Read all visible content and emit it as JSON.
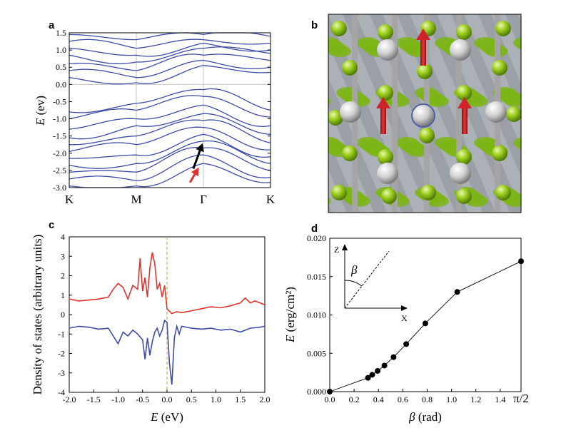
{
  "panels": {
    "a": "a",
    "b": "b",
    "c": "c",
    "d": "d"
  },
  "chart_data": [
    {
      "id": "a",
      "type": "line",
      "title": "",
      "xlabel": "",
      "ylabel_var": "E",
      "ylabel_unit": " (ev)",
      "ylim": [
        -3.0,
        1.5
      ],
      "yticks": [
        "1.5",
        "1.0",
        "0.5",
        "0.0",
        "-0.5",
        "-1.0",
        "-1.5",
        "-2.0",
        "-2.5",
        "-3.0"
      ],
      "kpoints": [
        "K",
        "M",
        "Γ",
        "K"
      ],
      "kpos": [
        0,
        1,
        2,
        3
      ],
      "series_color": "#3c4ca6",
      "arrows": [
        {
          "name": "black-arrow",
          "color": "#000000",
          "from": [
            1.85,
            -2.45
          ],
          "to": [
            1.98,
            -1.75
          ]
        },
        {
          "name": "red-arrow",
          "color": "#e0322b",
          "from": [
            1.8,
            -2.85
          ],
          "to": [
            1.92,
            -2.45
          ]
        }
      ],
      "bands": [
        {
          "name": "band-1",
          "values": [
            1.45,
            1.3,
            1.45,
            1.4
          ]
        },
        {
          "name": "band-2",
          "values": [
            1.25,
            1.05,
            1.3,
            1.2
          ]
        },
        {
          "name": "band-3",
          "values": [
            1.05,
            0.85,
            1.2,
            1.0
          ]
        },
        {
          "name": "band-4",
          "values": [
            0.85,
            0.65,
            1.05,
            0.9
          ]
        },
        {
          "name": "band-5",
          "values": [
            0.6,
            0.4,
            0.85,
            0.7
          ]
        },
        {
          "name": "band-6",
          "values": [
            0.4,
            0.2,
            0.7,
            0.5
          ]
        },
        {
          "name": "band-7",
          "values": [
            0.2,
            0.05,
            0.55,
            0.35
          ]
        },
        {
          "name": "band-8",
          "values": [
            -0.8,
            -0.55,
            -0.15,
            -0.75
          ]
        },
        {
          "name": "band-9",
          "values": [
            -1.0,
            -0.75,
            -0.35,
            -0.95
          ]
        },
        {
          "name": "band-10",
          "values": [
            -1.3,
            -1.0,
            -0.6,
            -1.2
          ]
        },
        {
          "name": "band-11",
          "values": [
            -1.55,
            -1.2,
            -0.85,
            -1.45
          ]
        },
        {
          "name": "band-12",
          "values": [
            -1.75,
            -1.5,
            -1.05,
            -1.7
          ]
        },
        {
          "name": "band-13",
          "values": [
            -1.95,
            -1.75,
            -1.25,
            -1.9
          ]
        },
        {
          "name": "band-14",
          "values": [
            -2.15,
            -2.05,
            -1.45,
            -2.1
          ]
        },
        {
          "name": "band-15",
          "values": [
            -2.35,
            -2.3,
            -1.65,
            -2.3
          ]
        },
        {
          "name": "band-16",
          "values": [
            -2.55,
            -2.55,
            -1.85,
            -2.5
          ]
        },
        {
          "name": "band-17",
          "values": [
            -2.75,
            -2.8,
            -2.05,
            -2.7
          ]
        },
        {
          "name": "band-18",
          "values": [
            -2.95,
            -2.95,
            -2.3,
            -2.85
          ]
        }
      ]
    },
    {
      "id": "c",
      "type": "line",
      "xlabel_var": "E",
      "xlabel_unit": " (eV)",
      "ylabel": "Density of states (arbitrary units)",
      "xlim": [
        -2.0,
        2.0
      ],
      "ylim": [
        -4,
        4
      ],
      "xticks": [
        "-2.0",
        "-1.5",
        "-1.0",
        "-0.5",
        "0.0",
        "0.5",
        "1.0",
        "1.5",
        "2.0"
      ],
      "yticks": [
        "4",
        "3",
        "2",
        "1",
        "0",
        "-1",
        "-2",
        "-3",
        "-4"
      ],
      "fermi_color": "#e8902a",
      "series": [
        {
          "name": "spin-up",
          "color": "#e0322b",
          "x": [
            -2.0,
            -1.8,
            -1.6,
            -1.4,
            -1.2,
            -1.1,
            -1.0,
            -0.9,
            -0.8,
            -0.7,
            -0.6,
            -0.55,
            -0.5,
            -0.45,
            -0.4,
            -0.35,
            -0.3,
            -0.25,
            -0.2,
            -0.15,
            -0.1,
            -0.05,
            0.0,
            0.1,
            0.2,
            0.3,
            0.5,
            0.7,
            0.9,
            1.1,
            1.3,
            1.5,
            1.6,
            1.7,
            1.8,
            2.0
          ],
          "y": [
            0.8,
            0.7,
            0.75,
            0.8,
            0.9,
            1.3,
            1.6,
            1.4,
            0.8,
            1.5,
            1.3,
            2.9,
            1.2,
            1.9,
            0.9,
            2.4,
            3.2,
            2.6,
            1.3,
            1.6,
            0.9,
            1.5,
            0.3,
            0.05,
            0.15,
            0.1,
            0.2,
            0.3,
            0.4,
            0.35,
            0.45,
            0.6,
            0.85,
            0.6,
            0.7,
            0.5
          ]
        },
        {
          "name": "spin-down",
          "color": "#3c4ca6",
          "x": [
            -2.0,
            -1.8,
            -1.6,
            -1.4,
            -1.2,
            -1.0,
            -0.9,
            -0.8,
            -0.7,
            -0.6,
            -0.5,
            -0.45,
            -0.4,
            -0.35,
            -0.3,
            -0.25,
            -0.2,
            -0.15,
            -0.1,
            -0.05,
            0.0,
            0.05,
            0.1,
            0.15,
            0.2,
            0.25,
            0.3,
            0.5,
            0.7,
            0.9,
            1.1,
            1.3,
            1.5,
            1.7,
            1.9,
            2.0
          ],
          "y": [
            -0.7,
            -0.6,
            -0.65,
            -0.75,
            -0.7,
            -1.5,
            -0.9,
            -1.1,
            -0.8,
            -1.0,
            -1.3,
            -2.3,
            -1.2,
            -2.1,
            -1.4,
            -0.9,
            -0.7,
            -1.1,
            -0.8,
            -0.3,
            -0.4,
            -2.5,
            -3.6,
            -1.2,
            -0.6,
            -1.0,
            -0.6,
            -0.7,
            -0.75,
            -0.7,
            -0.8,
            -0.75,
            -0.9,
            -0.7,
            -0.65,
            -0.6
          ]
        }
      ]
    },
    {
      "id": "d",
      "type": "scatter",
      "xlabel_var": "β",
      "xlabel_unit": " (rad)",
      "ylabel_var": "E",
      "ylabel_unit": " (erg/cm²)",
      "xlim": [
        0.0,
        1.5708
      ],
      "ylim": [
        0.0,
        0.02
      ],
      "xticks": [
        "0.0",
        "0.2",
        "0.4",
        "0.6",
        "0.8",
        "1.0",
        "1.2",
        "1.4",
        "π/2"
      ],
      "xtick_vals": [
        0.0,
        0.2,
        0.4,
        0.6,
        0.8,
        1.0,
        1.2,
        1.4,
        1.5708
      ],
      "yticks": [
        "0.020",
        "0.015",
        "0.010",
        "0.005",
        "0.000"
      ],
      "ytick_vals": [
        0.02,
        0.015,
        0.01,
        0.005,
        0.0
      ],
      "x": [
        0.0,
        0.314,
        0.349,
        0.393,
        0.449,
        0.524,
        0.628,
        0.785,
        1.047,
        1.571
      ],
      "y": [
        0.0,
        0.0018,
        0.0022,
        0.0027,
        0.0034,
        0.0045,
        0.0062,
        0.0089,
        0.013,
        0.017
      ],
      "inset": {
        "z_label": "Z",
        "x_label": "X",
        "angle_label": "β"
      }
    }
  ],
  "crystal": {
    "atom_color": "#c0c0c0",
    "ligand_color": "#8dc41a",
    "moment_color": "#d0222a",
    "ring_color": "#3a4ea8"
  }
}
